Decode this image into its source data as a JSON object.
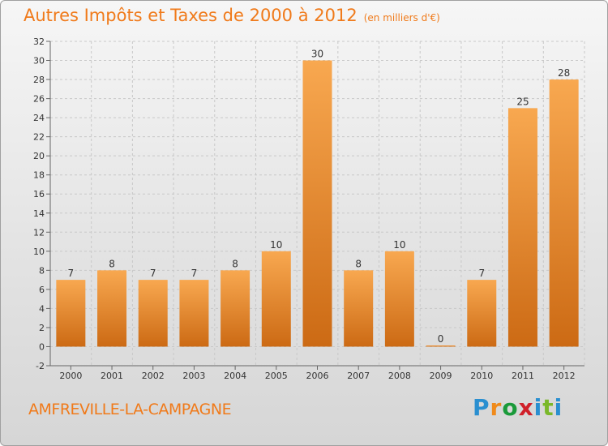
{
  "header": {
    "title": "Autres Impôts et Taxes de 2000 à 2012",
    "subtitle": "(en milliers d'€)"
  },
  "footer": {
    "commune": "AMFREVILLE-LA-CAMPAGNE",
    "logo": "Proxiti"
  },
  "colors": {
    "accent": "#f07a1a",
    "bar_light": "#f8a850",
    "bar_dark": "#cc6a14"
  },
  "chart_data": {
    "type": "bar",
    "title": "Autres Impôts et Taxes de 2000 à 2012",
    "categories": [
      "2000",
      "2001",
      "2002",
      "2003",
      "2004",
      "2005",
      "2006",
      "2007",
      "2008",
      "2009",
      "2010",
      "2011",
      "2012"
    ],
    "values": [
      7,
      8,
      7,
      7,
      8,
      10,
      30,
      8,
      10,
      0,
      7,
      25,
      28
    ],
    "ylim": [
      -2,
      32
    ],
    "yticks": [
      -2,
      0,
      2,
      4,
      6,
      8,
      10,
      12,
      14,
      16,
      18,
      20,
      22,
      24,
      26,
      28,
      30,
      32
    ],
    "grid": true
  }
}
